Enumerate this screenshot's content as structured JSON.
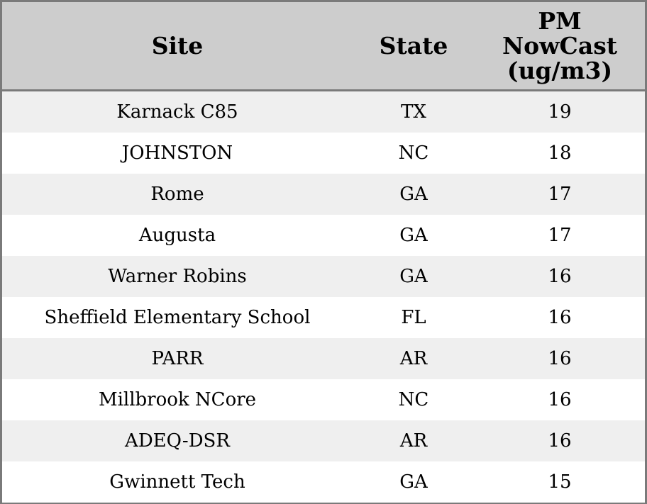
{
  "chart_data": {
    "type": "table",
    "columns": [
      "Site",
      "State",
      "PM NowCast (ug/m3)"
    ],
    "header_lines": {
      "site": [
        "Site"
      ],
      "state": [
        "State"
      ],
      "pm": [
        "PM",
        "NowCast",
        "(ug/m3)"
      ]
    },
    "rows": [
      {
        "site": "Karnack C85",
        "state": "TX",
        "pm": 19
      },
      {
        "site": "JOHNSTON",
        "state": "NC",
        "pm": 18
      },
      {
        "site": "Rome",
        "state": "GA",
        "pm": 17
      },
      {
        "site": "Augusta",
        "state": "GA",
        "pm": 17
      },
      {
        "site": "Warner Robins",
        "state": "GA",
        "pm": 16
      },
      {
        "site": "Sheffield Elementary School",
        "state": "FL",
        "pm": 16
      },
      {
        "site": "PARR",
        "state": "AR",
        "pm": 16
      },
      {
        "site": "Millbrook NCore",
        "state": "NC",
        "pm": 16
      },
      {
        "site": "ADEQ-DSR",
        "state": "AR",
        "pm": 16
      },
      {
        "site": "Gwinnett Tech",
        "state": "GA",
        "pm": 15
      }
    ]
  },
  "colors": {
    "header_bg": "#cdcdcd",
    "row_stripe": "#efefef",
    "row_plain": "#ffffff",
    "border": "#7a7a7a",
    "text": "#000000"
  }
}
